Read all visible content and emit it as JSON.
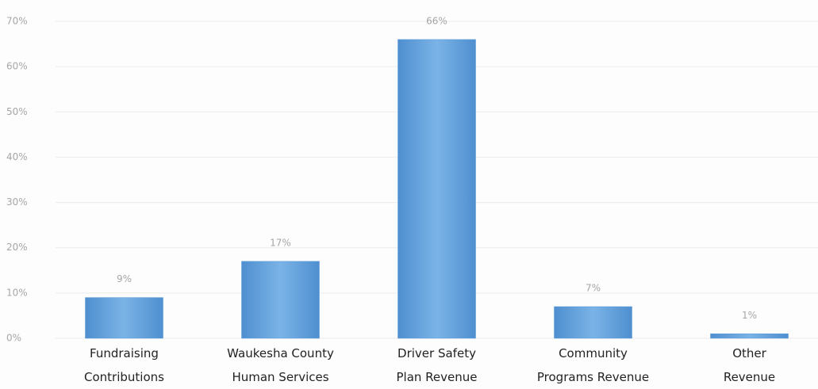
{
  "chart_data": {
    "type": "bar",
    "categories": [
      "Fundraising\nContributions",
      "Waukesha County\nHuman Services",
      "Driver Safety\nPlan Revenue",
      "Community\nPrograms Revenue",
      "Other\nRevenue"
    ],
    "values": [
      9,
      17,
      66,
      7,
      1
    ],
    "value_labels": [
      "9%",
      "17%",
      "66%",
      "7%",
      "1%"
    ],
    "color": "#5b9bd5",
    "ylim": [
      0,
      70
    ],
    "yticks": [
      {
        "value": 0,
        "label": "0%"
      },
      {
        "value": 10,
        "label": "10%"
      },
      {
        "value": 20,
        "label": "20%"
      },
      {
        "value": 30,
        "label": "30%"
      },
      {
        "value": 40,
        "label": "40%"
      },
      {
        "value": 50,
        "label": "50%"
      },
      {
        "value": 60,
        "label": "60%"
      },
      {
        "value": 70,
        "label": "70%"
      }
    ],
    "grid": true
  }
}
